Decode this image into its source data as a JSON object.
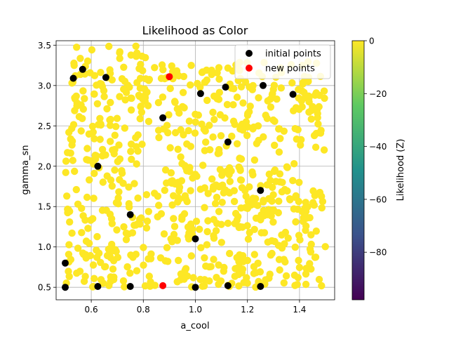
{
  "chart_data": {
    "type": "scatter",
    "title": "Likelihood as Color",
    "xlabel": "a_cool",
    "ylabel": "gamma_sn",
    "xlim": [
      0.465,
      1.535
    ],
    "ylim": [
      0.345,
      3.555
    ],
    "xticks": [
      0.6,
      0.8,
      1.0,
      1.2,
      1.4
    ],
    "xtick_labels": [
      "0.6",
      "0.8",
      "1.0",
      "1.2",
      "1.4"
    ],
    "yticks": [
      0.5,
      1.0,
      1.5,
      2.0,
      2.5,
      3.0,
      3.5
    ],
    "ytick_labels": [
      "0.5",
      "1.0",
      "1.5",
      "2.0",
      "2.5",
      "3.0",
      "3.5"
    ],
    "grid": true,
    "legend_position": "top-right",
    "legend": [
      {
        "label": "initial points",
        "color": "#000000"
      },
      {
        "label": "new points",
        "color": "#ff0000"
      }
    ],
    "background_cloud": {
      "description_color": "#fde725",
      "x_range": [
        0.5,
        1.5
      ],
      "y_range": [
        0.5,
        3.5
      ],
      "regions": [
        {
          "y": [
            0.5,
            1.7
          ],
          "x": [
            0.5,
            1.5
          ]
        },
        {
          "y": [
            1.7,
            2.1
          ],
          "x": [
            0.5,
            0.78
          ]
        },
        {
          "y": [
            1.7,
            2.1
          ],
          "x": [
            0.88,
            1.4
          ]
        },
        {
          "y": [
            2.1,
            3.3
          ],
          "x": [
            0.5,
            1.5
          ]
        },
        {
          "y": [
            3.3,
            3.5
          ],
          "x": [
            0.5,
            0.82
          ]
        }
      ],
      "approx_point_count": 780
    },
    "series": [
      {
        "name": "initial points",
        "color": "#000000",
        "points": [
          {
            "x": 0.531,
            "y": 3.09
          },
          {
            "x": 0.567,
            "y": 3.2
          },
          {
            "x": 0.656,
            "y": 3.1
          },
          {
            "x": 0.875,
            "y": 2.6
          },
          {
            "x": 1.02,
            "y": 2.9
          },
          {
            "x": 1.116,
            "y": 2.98
          },
          {
            "x": 1.26,
            "y": 3.0
          },
          {
            "x": 1.375,
            "y": 2.89
          },
          {
            "x": 1.125,
            "y": 2.3
          },
          {
            "x": 0.625,
            "y": 2.0
          },
          {
            "x": 1.25,
            "y": 1.7
          },
          {
            "x": 0.75,
            "y": 1.4
          },
          {
            "x": 1.0,
            "y": 1.1
          },
          {
            "x": 0.5,
            "y": 0.8
          },
          {
            "x": 0.5,
            "y": 0.5
          },
          {
            "x": 0.625,
            "y": 0.51
          },
          {
            "x": 0.75,
            "y": 0.51
          },
          {
            "x": 1.0,
            "y": 0.5
          },
          {
            "x": 1.125,
            "y": 0.52
          },
          {
            "x": 1.25,
            "y": 0.51
          }
        ]
      },
      {
        "name": "new points",
        "color": "#ff0000",
        "points": [
          {
            "x": 0.9,
            "y": 3.11
          },
          {
            "x": 0.875,
            "y": 0.52
          }
        ]
      }
    ],
    "colorbar": {
      "label": "Likelihood (Z)",
      "range": [
        -98,
        0
      ],
      "ticks": [
        0,
        -20,
        -40,
        -60,
        -80
      ],
      "tick_labels": [
        "0",
        "−20",
        "−40",
        "−60",
        "−80"
      ],
      "colormap": [
        "#440154",
        "#3b528b",
        "#21918c",
        "#5ec962",
        "#fde725"
      ]
    }
  }
}
